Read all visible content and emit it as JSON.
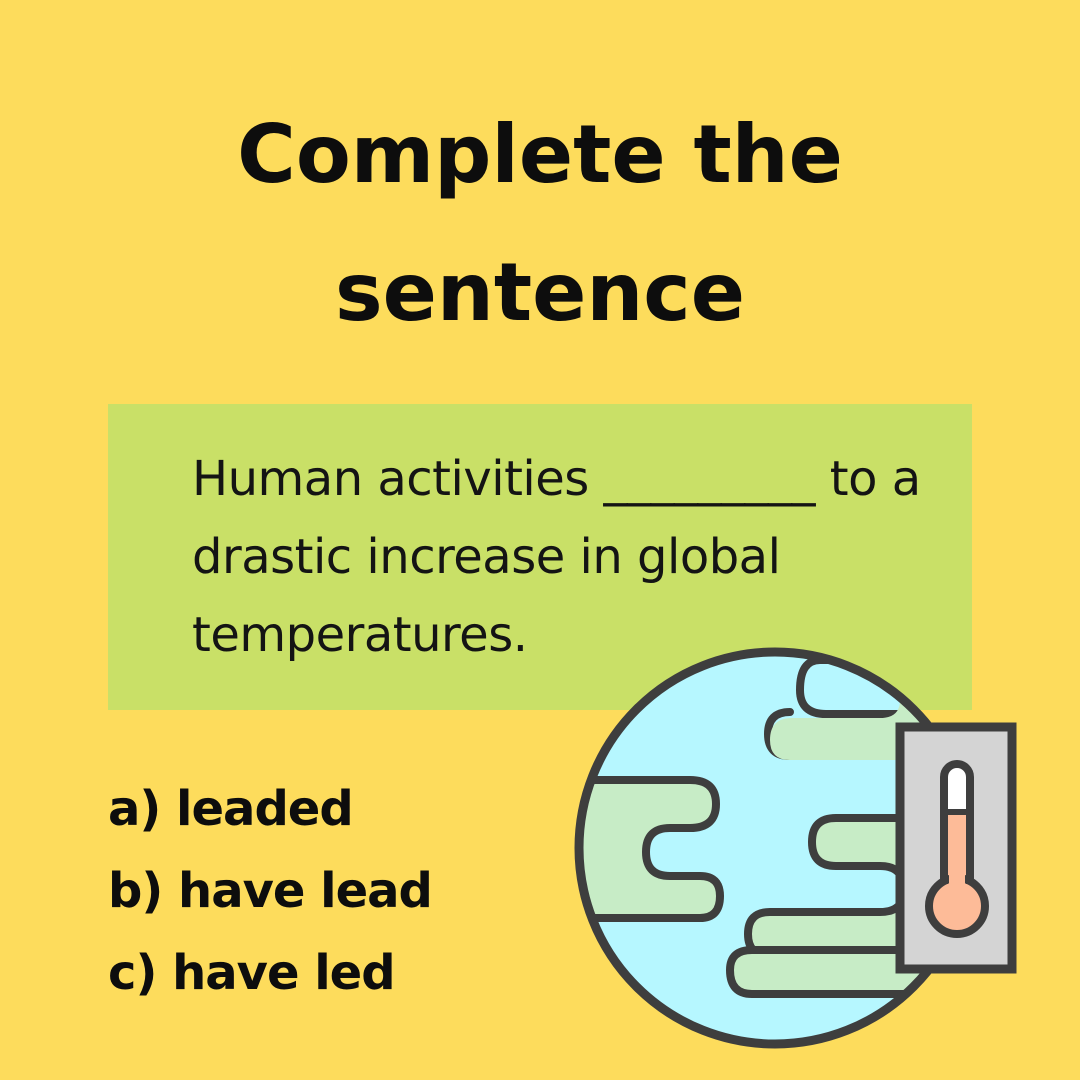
{
  "title": {
    "line1": "Complete the",
    "line2": "sentence"
  },
  "question": {
    "text": "Human activities _________ to a drastic increase in global temperatures."
  },
  "options": [
    {
      "letter": "a)",
      "text": "leaded"
    },
    {
      "letter": "b)",
      "text": "have lead"
    },
    {
      "letter": "c)",
      "text": "have led"
    }
  ],
  "illustration": {
    "icon": "globe-thermometer-icon",
    "colors": {
      "ocean": "#b6f7ff",
      "land": "#c7ecc6",
      "outline": "#3e3e3e",
      "panel": "#d4d4d4",
      "mercury": "#fdbb98"
    }
  },
  "colors": {
    "background": "#fddc5c",
    "question_box": "#c9e067",
    "text": "#0d0d0d"
  }
}
